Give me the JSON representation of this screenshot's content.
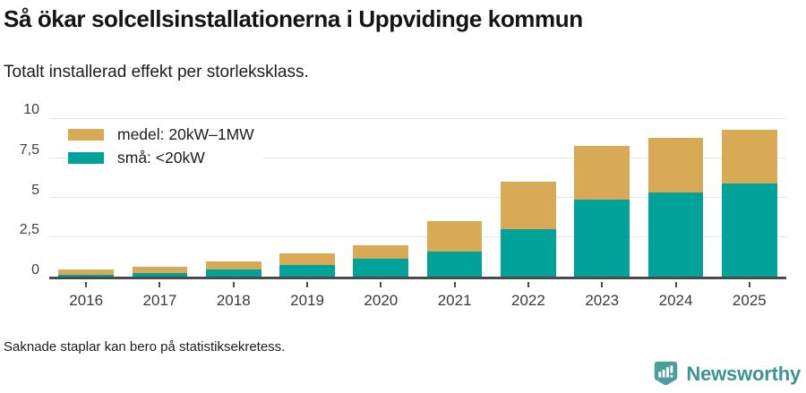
{
  "header": {
    "title": "Så ökar solcellsinstallationerna i Uppvidinge kommun",
    "subtitle": "Totalt installerad effekt per storleksklass."
  },
  "chart_data": {
    "type": "bar",
    "stacked": true,
    "title": "Så ökar solcellsinstallationerna i Uppvidinge kommun",
    "subtitle": "Totalt installerad effekt per storleksklass.",
    "categories": [
      "2016",
      "2017",
      "2018",
      "2019",
      "2020",
      "2021",
      "2022",
      "2023",
      "2024",
      "2025"
    ],
    "series": [
      {
        "name": "medel: 20kW–1MW",
        "key": "medel",
        "color": "#d9aa55",
        "stack_position": "top",
        "values": [
          0.35,
          0.4,
          0.5,
          0.75,
          0.85,
          1.95,
          3.05,
          3.4,
          3.45,
          3.4
        ]
      },
      {
        "name": "små: <20kW",
        "key": "sma",
        "color": "#00a299",
        "stack_position": "bottom",
        "values": [
          0.1,
          0.2,
          0.45,
          0.75,
          1.15,
          1.6,
          3.0,
          4.9,
          5.35,
          5.9
        ]
      }
    ],
    "stacked_totals": [
      0.45,
      0.6,
      0.95,
      1.5,
      2.0,
      3.55,
      6.05,
      8.3,
      8.8,
      9.3
    ],
    "ylim": [
      0,
      10
    ],
    "yticks": [
      {
        "v": 0,
        "label": "0"
      },
      {
        "v": 2.5,
        "label": "2,5"
      },
      {
        "v": 5,
        "label": "5"
      },
      {
        "v": 7.5,
        "label": "7,5"
      },
      {
        "v": 10,
        "label": "10"
      }
    ],
    "xlabel": "",
    "ylabel": "",
    "grid": true,
    "legend_position": "top-left"
  },
  "footer": {
    "note": "Saknade staplar kan bero på statistiksekretess.",
    "brand": "Newsworthy"
  },
  "colors": {
    "medel": "#d9aa55",
    "sma": "#00a299",
    "grid": "#e7e7e7",
    "axis": "#4a4a4a",
    "brand_text": "#3a9494",
    "brand_icon": "#4d9d9d",
    "title_text": "#141414"
  }
}
